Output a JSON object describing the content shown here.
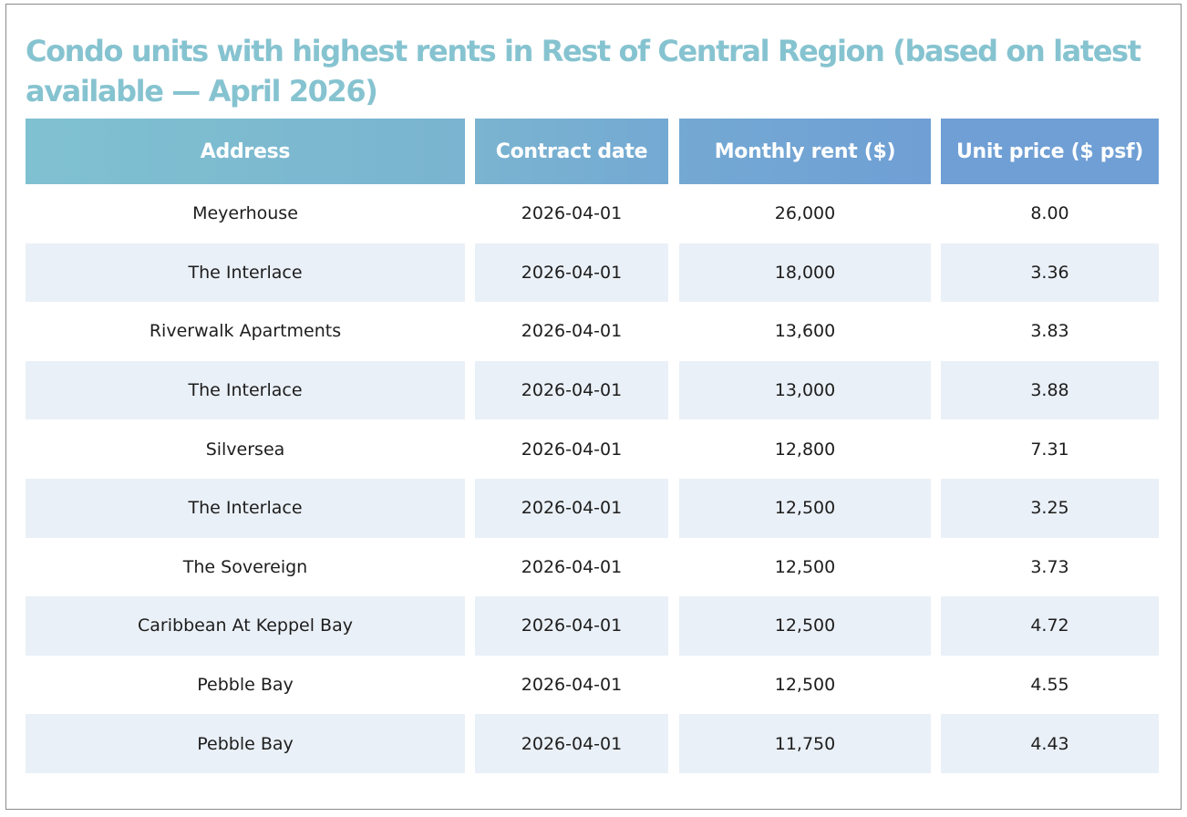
{
  "chart_data": {
    "type": "table",
    "title": "Condo units with highest rents in Rest of Central Region (based on latest available — April 2026)",
    "columns": [
      "Address",
      "Contract date",
      "Monthly rent ($)",
      "Unit price ($ psf)"
    ],
    "rows": [
      [
        "Meyerhouse",
        "2026-04-01",
        "26,000",
        "8.00"
      ],
      [
        "The Interlace",
        "2026-04-01",
        "18,000",
        "3.36"
      ],
      [
        "Riverwalk Apartments",
        "2026-04-01",
        "13,600",
        "3.83"
      ],
      [
        "The Interlace",
        "2026-04-01",
        "13,000",
        "3.88"
      ],
      [
        "Silversea",
        "2026-04-01",
        "12,800",
        "7.31"
      ],
      [
        "The Interlace",
        "2026-04-01",
        "12,500",
        "3.25"
      ],
      [
        "The Sovereign",
        "2026-04-01",
        "12,500",
        "3.73"
      ],
      [
        "Caribbean At Keppel Bay",
        "2026-04-01",
        "12,500",
        "4.72"
      ],
      [
        "Pebble Bay",
        "2026-04-01",
        "12,500",
        "4.55"
      ],
      [
        "Pebble Bay",
        "2026-04-01",
        "11,750",
        "4.43"
      ]
    ],
    "header_colors": [
      "#80c1d1",
      "#7ab4d0",
      "#74a9d3",
      "#6f9fd4"
    ],
    "title_color": "#86c3d0",
    "stripe_color": "#eaf0f7"
  }
}
